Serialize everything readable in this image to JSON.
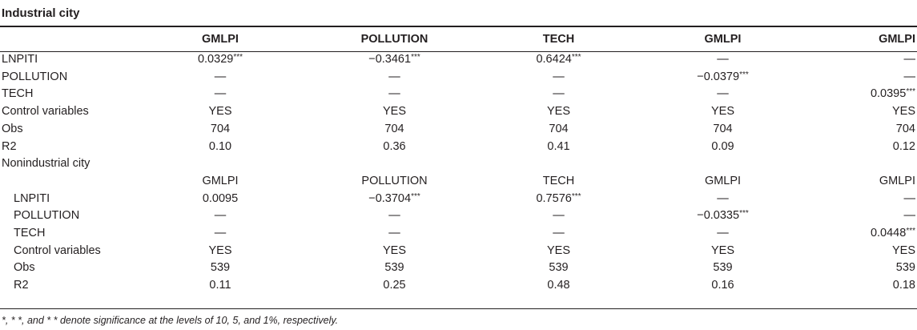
{
  "title": "Industrial city",
  "industrial": {
    "headers": [
      "",
      "GMLPI",
      "POLLUTION",
      "TECH",
      "GMLPI",
      "GMLPI"
    ],
    "rows": [
      {
        "label": "LNPITI",
        "cells": [
          {
            "v": "0.0329",
            "s": "***"
          },
          {
            "v": "−0.3461",
            "s": "***"
          },
          {
            "v": "0.6424",
            "s": "***"
          },
          {
            "v": "—",
            "s": ""
          },
          {
            "v": "—",
            "s": ""
          }
        ]
      },
      {
        "label": "POLLUTION",
        "cells": [
          {
            "v": "—",
            "s": ""
          },
          {
            "v": "—",
            "s": ""
          },
          {
            "v": "—",
            "s": ""
          },
          {
            "v": "−0.0379",
            "s": "***"
          },
          {
            "v": "—",
            "s": ""
          }
        ]
      },
      {
        "label": "TECH",
        "cells": [
          {
            "v": "—",
            "s": ""
          },
          {
            "v": "—",
            "s": ""
          },
          {
            "v": "—",
            "s": ""
          },
          {
            "v": "—",
            "s": ""
          },
          {
            "v": "0.0395",
            "s": "***"
          }
        ]
      },
      {
        "label": "Control variables",
        "cells": [
          {
            "v": "YES",
            "s": ""
          },
          {
            "v": "YES",
            "s": ""
          },
          {
            "v": "YES",
            "s": ""
          },
          {
            "v": "YES",
            "s": ""
          },
          {
            "v": "YES",
            "s": ""
          }
        ]
      },
      {
        "label": "Obs",
        "cells": [
          {
            "v": "704",
            "s": ""
          },
          {
            "v": "704",
            "s": ""
          },
          {
            "v": "704",
            "s": ""
          },
          {
            "v": "704",
            "s": ""
          },
          {
            "v": "704",
            "s": ""
          }
        ]
      },
      {
        "label": "R2",
        "cells": [
          {
            "v": "0.10",
            "s": ""
          },
          {
            "v": "0.36",
            "s": ""
          },
          {
            "v": "0.41",
            "s": ""
          },
          {
            "v": "0.09",
            "s": ""
          },
          {
            "v": "0.12",
            "s": ""
          }
        ]
      }
    ]
  },
  "nonindustrial": {
    "section_label": "Nonindustrial city",
    "headers": [
      "",
      "GMLPI",
      "POLLUTION",
      "TECH",
      "GMLPI",
      "GMLPI"
    ],
    "rows": [
      {
        "label": "LNPITI",
        "cells": [
          {
            "v": "0.0095",
            "s": ""
          },
          {
            "v": "−0.3704",
            "s": "***"
          },
          {
            "v": "0.7576",
            "s": "***"
          },
          {
            "v": "—",
            "s": ""
          },
          {
            "v": "—",
            "s": ""
          }
        ]
      },
      {
        "label": "POLLUTION",
        "cells": [
          {
            "v": "—",
            "s": ""
          },
          {
            "v": "—",
            "s": ""
          },
          {
            "v": "—",
            "s": ""
          },
          {
            "v": "−0.0335",
            "s": "***"
          },
          {
            "v": "—",
            "s": ""
          }
        ]
      },
      {
        "label": "TECH",
        "cells": [
          {
            "v": "—",
            "s": ""
          },
          {
            "v": "—",
            "s": ""
          },
          {
            "v": "—",
            "s": ""
          },
          {
            "v": "—",
            "s": ""
          },
          {
            "v": "0.0448",
            "s": "***"
          }
        ]
      },
      {
        "label": "Control variables",
        "cells": [
          {
            "v": "YES",
            "s": ""
          },
          {
            "v": "YES",
            "s": ""
          },
          {
            "v": "YES",
            "s": ""
          },
          {
            "v": "YES",
            "s": ""
          },
          {
            "v": "YES",
            "s": ""
          }
        ]
      },
      {
        "label": "Obs",
        "cells": [
          {
            "v": "539",
            "s": ""
          },
          {
            "v": "539",
            "s": ""
          },
          {
            "v": "539",
            "s": ""
          },
          {
            "v": "539",
            "s": ""
          },
          {
            "v": "539",
            "s": ""
          }
        ]
      },
      {
        "label": "R2",
        "cells": [
          {
            "v": "0.11",
            "s": ""
          },
          {
            "v": "0.25",
            "s": ""
          },
          {
            "v": "0.48",
            "s": ""
          },
          {
            "v": "0.16",
            "s": ""
          },
          {
            "v": "0.18",
            "s": ""
          }
        ]
      }
    ]
  },
  "footnote": "*, * *, and * * denote significance at the levels of 10, 5, and 1%, respectively."
}
